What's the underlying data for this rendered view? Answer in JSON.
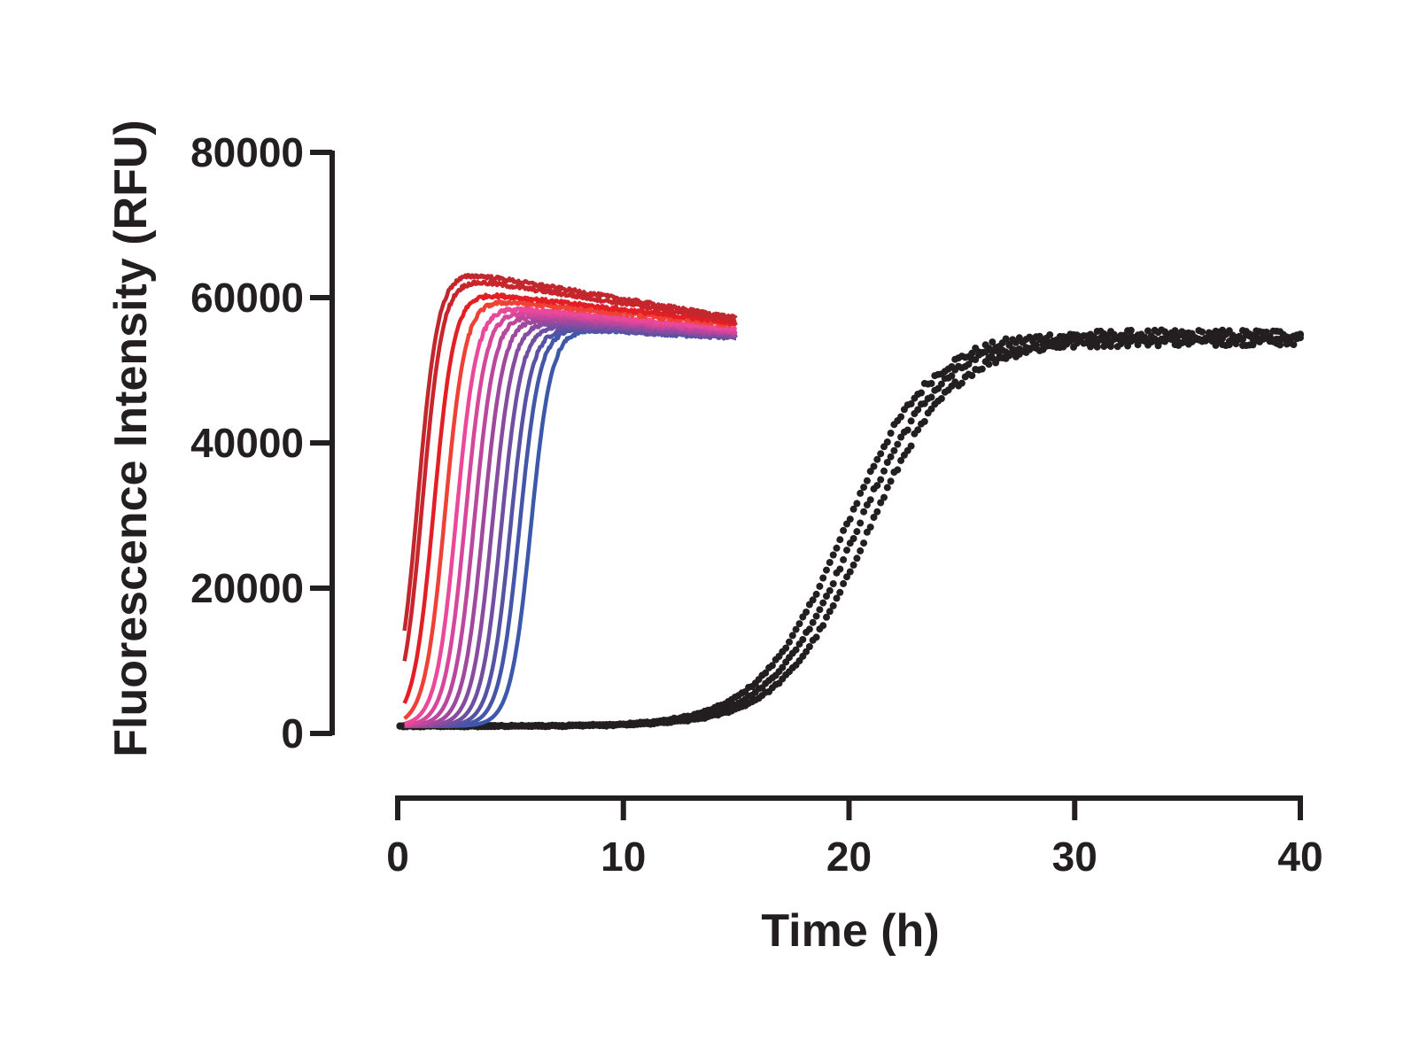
{
  "chart_data": {
    "type": "line",
    "title": "",
    "xlabel": "Time (h)",
    "ylabel": "Fluorescence Intensity (RFU)",
    "xlim": [
      0,
      40
    ],
    "ylim": [
      0,
      80000
    ],
    "xticks": [
      "0",
      "10",
      "20",
      "30",
      "40"
    ],
    "yticks": [
      "0",
      "20000",
      "40000",
      "60000",
      "80000"
    ],
    "grid": false,
    "legend": "none",
    "model_note": "logistic curves: y = base + (plateau - base)/(1+exp(-(t-midpoint)/width)) - drift*(t - midpoint)",
    "series": [
      {
        "name": "curve-1",
        "color": "#c1272d",
        "t_range": [
          0.3,
          15
        ],
        "base": 1000,
        "midpoint_h": 0.9,
        "width_h": 0.45,
        "plateau": 64000,
        "drift_per_h": 520
      },
      {
        "name": "curve-2",
        "color": "#c8252d",
        "t_range": [
          0.3,
          15
        ],
        "base": 1000,
        "midpoint_h": 1.1,
        "width_h": 0.45,
        "plateau": 63000,
        "drift_per_h": 480
      },
      {
        "name": "curve-3",
        "color": "#e31e24",
        "t_range": [
          0.3,
          15
        ],
        "base": 1000,
        "midpoint_h": 1.6,
        "width_h": 0.45,
        "plateau": 61000,
        "drift_per_h": 360
      },
      {
        "name": "curve-4",
        "color": "#ef4136",
        "t_range": [
          0.3,
          15
        ],
        "base": 1000,
        "midpoint_h": 2.1,
        "width_h": 0.45,
        "plateau": 60000,
        "drift_per_h": 320
      },
      {
        "name": "curve-5",
        "color": "#ec4899",
        "t_range": [
          0.3,
          15
        ],
        "base": 1000,
        "midpoint_h": 2.6,
        "width_h": 0.45,
        "plateau": 59000,
        "drift_per_h": 290
      },
      {
        "name": "curve-6",
        "color": "#d6479b",
        "t_range": [
          0.3,
          15
        ],
        "base": 1000,
        "midpoint_h": 3.0,
        "width_h": 0.45,
        "plateau": 58500,
        "drift_per_h": 280
      },
      {
        "name": "curve-7",
        "color": "#b9479d",
        "t_range": [
          0.3,
          15
        ],
        "base": 1000,
        "midpoint_h": 3.4,
        "width_h": 0.45,
        "plateau": 58000,
        "drift_per_h": 270
      },
      {
        "name": "curve-8",
        "color": "#a0489e",
        "t_range": [
          0.3,
          15
        ],
        "base": 1000,
        "midpoint_h": 3.8,
        "width_h": 0.45,
        "plateau": 57500,
        "drift_per_h": 250
      },
      {
        "name": "curve-9",
        "color": "#874c9f",
        "t_range": [
          0.3,
          15
        ],
        "base": 1000,
        "midpoint_h": 4.2,
        "width_h": 0.45,
        "plateau": 57000,
        "drift_per_h": 230
      },
      {
        "name": "curve-10",
        "color": "#6e4fa1",
        "t_range": [
          0.3,
          15
        ],
        "base": 1000,
        "midpoint_h": 4.6,
        "width_h": 0.45,
        "plateau": 56500,
        "drift_per_h": 200
      },
      {
        "name": "curve-11",
        "color": "#5652a4",
        "t_range": [
          0.3,
          15
        ],
        "base": 1000,
        "midpoint_h": 5.0,
        "width_h": 0.45,
        "plateau": 56000,
        "drift_per_h": 170
      },
      {
        "name": "curve-12",
        "color": "#4456a8",
        "t_range": [
          0.3,
          15
        ],
        "base": 1000,
        "midpoint_h": 5.4,
        "width_h": 0.45,
        "plateau": 56000,
        "drift_per_h": 150
      },
      {
        "name": "curve-13",
        "color": "#3b58ab",
        "t_range": [
          0.3,
          15
        ],
        "base": 1000,
        "midpoint_h": 5.9,
        "width_h": 0.45,
        "plateau": 55800,
        "drift_per_h": 120
      }
    ],
    "scatter_series": [
      {
        "name": "black-rep-1",
        "color": "#231f20",
        "t_range": [
          0.1,
          40
        ],
        "step_h": 0.15,
        "base": 1000,
        "midpoint_h": 19.8,
        "width_h": 1.9,
        "plateau": 55000,
        "jitter": 700
      },
      {
        "name": "black-rep-2",
        "color": "#231f20",
        "t_range": [
          0.1,
          40
        ],
        "step_h": 0.15,
        "base": 1000,
        "midpoint_h": 20.3,
        "width_h": 1.9,
        "plateau": 54500,
        "jitter": 700
      },
      {
        "name": "black-rep-3",
        "color": "#231f20",
        "t_range": [
          0.1,
          40
        ],
        "step_h": 0.15,
        "base": 1000,
        "midpoint_h": 20.8,
        "width_h": 1.9,
        "plateau": 54000,
        "jitter": 700
      }
    ]
  }
}
